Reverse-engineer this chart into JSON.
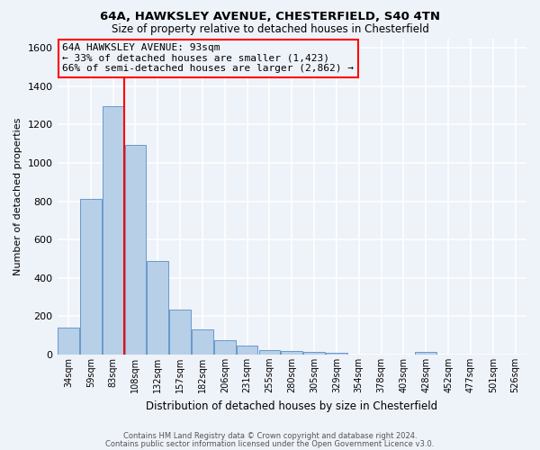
{
  "title1": "64A, HAWKSLEY AVENUE, CHESTERFIELD, S40 4TN",
  "title2": "Size of property relative to detached houses in Chesterfield",
  "xlabel": "Distribution of detached houses by size in Chesterfield",
  "ylabel": "Number of detached properties",
  "categories": [
    "34sqm",
    "59sqm",
    "83sqm",
    "108sqm",
    "132sqm",
    "157sqm",
    "182sqm",
    "206sqm",
    "231sqm",
    "255sqm",
    "280sqm",
    "305sqm",
    "329sqm",
    "354sqm",
    "378sqm",
    "403sqm",
    "428sqm",
    "452sqm",
    "477sqm",
    "501sqm",
    "526sqm"
  ],
  "values": [
    140,
    810,
    1295,
    1095,
    490,
    235,
    133,
    75,
    45,
    25,
    18,
    15,
    10,
    0,
    0,
    0,
    13,
    0,
    0,
    0,
    0
  ],
  "bar_color": "#b8cfe8",
  "bar_edge_color": "#6699cc",
  "vline_color": "red",
  "ylim": [
    0,
    1650
  ],
  "yticks": [
    0,
    200,
    400,
    600,
    800,
    1000,
    1200,
    1400,
    1600
  ],
  "annotation_line1": "64A HAWKSLEY AVENUE: 93sqm",
  "annotation_line2": "← 33% of detached houses are smaller (1,423)",
  "annotation_line3": "66% of semi-detached houses are larger (2,862) →",
  "footnote1": "Contains HM Land Registry data © Crown copyright and database right 2024.",
  "footnote2": "Contains public sector information licensed under the Open Government Licence v3.0.",
  "background_color": "#eef2f9"
}
